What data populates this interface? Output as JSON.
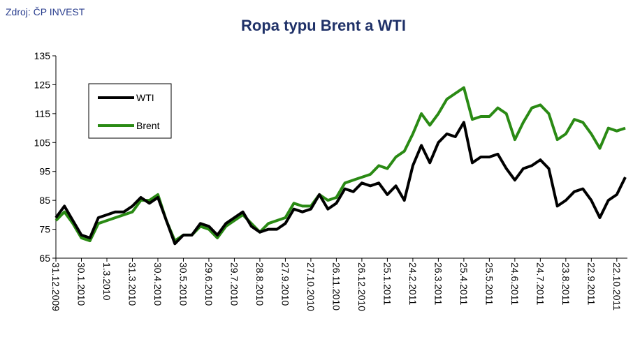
{
  "source": "Zdroj: ČP INVEST",
  "chart_data": {
    "type": "line",
    "title": "Ropa typu Brent a WTI",
    "categories": [
      "31.12.2009",
      null,
      null,
      "30.1.2010",
      null,
      null,
      "1.3.2010",
      null,
      null,
      "31.3.2010",
      null,
      null,
      "30.4.2010",
      null,
      null,
      "30.5.2010",
      null,
      null,
      "29.6.2010",
      null,
      null,
      "29.7.2010",
      null,
      null,
      "28.8.2010",
      null,
      null,
      "27.9.2010",
      null,
      null,
      "27.10.2010",
      null,
      null,
      "26.11.2010",
      null,
      null,
      "26.12.2010",
      null,
      null,
      "25.1.2011",
      null,
      null,
      "24.2.2011",
      null,
      null,
      "26.3.2011",
      null,
      null,
      "25.4.2011",
      null,
      null,
      "25.5.2011",
      null,
      null,
      "24.6.2011",
      null,
      null,
      "24.7.2011",
      null,
      null,
      "23.8.2011",
      null,
      null,
      "22.9.2011",
      null,
      null,
      "22.10.2011",
      null
    ],
    "series": [
      {
        "name": "WTI",
        "color": "#000000",
        "values": [
          79,
          83,
          78,
          73,
          72,
          79,
          80,
          81,
          81,
          83,
          86,
          84,
          86,
          78,
          70,
          73,
          73,
          77,
          76,
          73,
          77,
          79,
          81,
          76,
          74,
          75,
          75,
          77,
          82,
          81,
          82,
          87,
          82,
          84,
          89,
          88,
          91,
          90,
          91,
          87,
          90,
          85,
          97,
          104,
          98,
          105,
          108,
          107,
          112,
          98,
          100,
          100,
          101,
          96,
          92,
          96,
          97,
          99,
          96,
          83,
          85,
          88,
          89,
          85,
          79,
          85,
          87,
          93
        ]
      },
      {
        "name": "Brent",
        "color": "#2a8a14",
        "values": [
          78,
          81,
          77,
          72,
          71,
          77,
          78,
          79,
          80,
          81,
          85,
          85,
          87,
          78,
          71,
          73,
          73,
          76,
          75,
          72,
          76,
          78,
          80,
          77,
          74,
          77,
          78,
          79,
          84,
          83,
          83,
          87,
          85,
          86,
          91,
          92,
          93,
          94,
          97,
          96,
          100,
          102,
          108,
          115,
          111,
          115,
          120,
          122,
          124,
          113,
          114,
          114,
          117,
          115,
          106,
          112,
          117,
          118,
          115,
          106,
          108,
          113,
          112,
          108,
          103,
          110,
          109,
          110
        ]
      }
    ],
    "ylim": [
      65,
      135
    ],
    "yticks": [
      65,
      75,
      85,
      95,
      105,
      115,
      125,
      135
    ],
    "legend": "upper-left"
  }
}
